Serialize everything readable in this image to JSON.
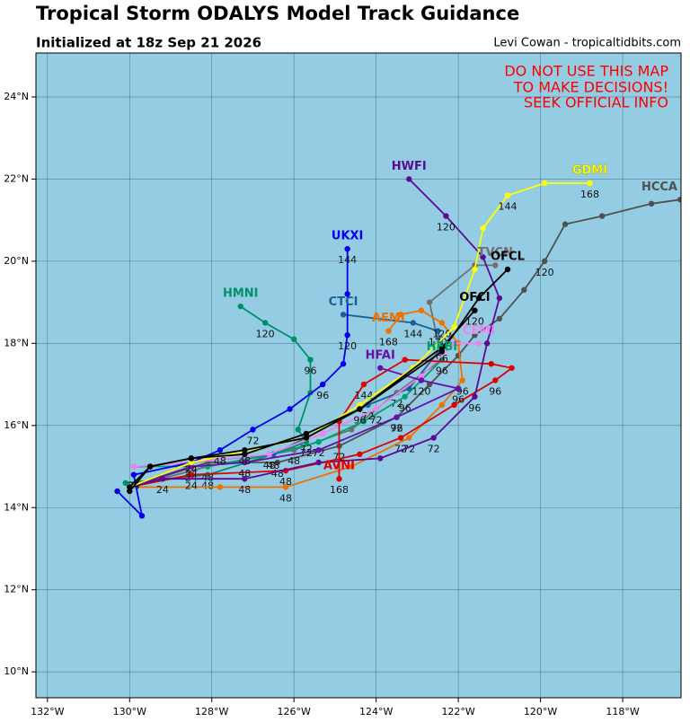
{
  "chart_data": {
    "type": "track",
    "title": "Tropical Storm ODALYS Model Track Guidance",
    "subtitle": "Initialized at 18z Sep 21 2026",
    "credit": "Levi Cowan - tropicaltidbits.com",
    "warning": [
      "DO NOT USE THIS MAP",
      "TO MAKE DECISIONS!",
      "SEEK OFFICIAL INFO"
    ],
    "background": "#94cde3",
    "grid": true,
    "xlim": [
      -132.28,
      -116.58
    ],
    "ylim": [
      9.37,
      25.07
    ],
    "xticks": [
      {
        "value": -132,
        "label": "132°W"
      },
      {
        "value": -130,
        "label": "130°W"
      },
      {
        "value": -128,
        "label": "128°W"
      },
      {
        "value": -126,
        "label": "126°W"
      },
      {
        "value": -124,
        "label": "124°W"
      },
      {
        "value": -122,
        "label": "122°W"
      },
      {
        "value": -120,
        "label": "120°W"
      },
      {
        "value": -118,
        "label": "118°W"
      }
    ],
    "yticks": [
      {
        "value": 10,
        "label": "10°N"
      },
      {
        "value": 12,
        "label": "12°N"
      },
      {
        "value": 14,
        "label": "14°N"
      },
      {
        "value": 16,
        "label": "16°N"
      },
      {
        "value": 18,
        "label": "18°N"
      },
      {
        "value": 20,
        "label": "20°N"
      },
      {
        "value": 22,
        "label": "22°N"
      },
      {
        "value": 24,
        "label": "24°N"
      }
    ],
    "tracks": [
      {
        "name": "HCCA",
        "color": "#505050",
        "lon": [
          -130.0,
          -128.1,
          -126.4,
          -124.9,
          -123.5,
          -122.7,
          -122.0,
          -121.6,
          -121.0,
          -120.4,
          -119.9,
          -119.4,
          -118.5,
          -117.3,
          -116.6
        ],
        "lat": [
          14.5,
          15.1,
          15.1,
          15.5,
          16.2,
          17.0,
          17.7,
          18.2,
          18.6,
          19.3,
          20.0,
          20.9,
          21.1,
          21.4,
          21.5
        ],
        "hours": [
          null,
          null,
          48,
          72,
          96,
          null,
          null,
          null,
          null,
          null,
          120,
          null,
          null,
          null,
          null
        ]
      },
      {
        "name": "TVCN",
        "color": "#707070",
        "lon": [
          -130.0,
          -128.1,
          -126.0,
          -124.6,
          -123.5,
          -122.4,
          -122.7,
          -121.6,
          -121.1
        ],
        "lat": [
          14.5,
          15.0,
          15.4,
          15.9,
          16.8,
          17.6,
          19.0,
          19.9,
          19.9
        ],
        "hours": [
          null,
          null,
          48,
          null,
          72,
          96,
          null,
          null,
          null
        ]
      },
      {
        "name": "HMNI",
        "color": "#009068",
        "lon": [
          -130.1,
          -128.1,
          -126.5,
          -125.7,
          -125.9,
          -125.6,
          -125.6,
          -126.0,
          -126.7,
          -127.3
        ],
        "lat": [
          14.6,
          14.8,
          15.3,
          15.6,
          15.9,
          16.8,
          17.6,
          18.1,
          18.5,
          18.9
        ],
        "hours": [
          null,
          48,
          null,
          72,
          null,
          null,
          96,
          null,
          120,
          null
        ]
      },
      {
        "name": "HFBI",
        "color": "#00a070",
        "lon": [
          -129.9,
          -128.1,
          -126.5,
          -125.4,
          -124.3,
          -123.3,
          -122.4
        ],
        "lat": [
          15.0,
          15.0,
          15.3,
          15.6,
          16.1,
          16.7,
          17.6
        ],
        "hours": [
          null,
          48,
          null,
          72,
          null,
          96,
          null
        ]
      },
      {
        "name": "CTCI",
        "color": "#1a6090",
        "lon": [
          -130.0,
          -128.5,
          -126.5,
          -125.7,
          -124.2,
          -123.2,
          -122.4,
          -122.5,
          -123.1,
          -124.8
        ],
        "lat": [
          14.5,
          15.1,
          15.3,
          15.7,
          16.5,
          16.9,
          17.9,
          18.3,
          18.5,
          18.7
        ],
        "hours": [
          null,
          24,
          48,
          null,
          72,
          null,
          96,
          120,
          144,
          null
        ]
      },
      {
        "name": "AEMI",
        "color": "#f07000",
        "lon": [
          -130.0,
          -127.8,
          -126.2,
          -124.6,
          -123.2,
          -122.4,
          -121.9,
          -122.0,
          -122.4,
          -122.9,
          -123.4,
          -123.7
        ],
        "lat": [
          14.5,
          14.5,
          14.5,
          15.0,
          15.7,
          16.5,
          17.1,
          18.0,
          18.5,
          18.8,
          18.7,
          18.3
        ],
        "hours": [
          null,
          null,
          48,
          null,
          72,
          null,
          96,
          null,
          120,
          null,
          null,
          168
        ]
      },
      {
        "name": "CEMI",
        "color": "#ee82ee",
        "lon": [
          -129.9,
          -128.5,
          -126.6,
          -125.3,
          -124.0,
          -122.9,
          -122.1,
          -121.5
        ],
        "lat": [
          15.0,
          15.1,
          15.3,
          15.8,
          16.4,
          17.2,
          18.0,
          18.0
        ],
        "hours": [
          null,
          null,
          48,
          null,
          72,
          null,
          null,
          null
        ]
      },
      {
        "name": "AVNI",
        "color": "#e00000",
        "lon": [
          -130.0,
          -128.5,
          -126.2,
          -124.4,
          -123.4,
          -122.1,
          -121.1,
          -120.7,
          -121.2,
          -123.3,
          -124.3,
          -124.9,
          -124.9
        ],
        "lat": [
          14.5,
          14.8,
          14.9,
          15.3,
          15.7,
          16.5,
          17.1,
          17.4,
          17.5,
          17.6,
          17.0,
          16.1,
          14.7
        ],
        "hours": [
          null,
          24,
          48,
          null,
          72,
          null,
          96,
          null,
          null,
          null,
          144,
          null,
          168
        ]
      },
      {
        "name": "HFAI",
        "color": "#6a0dad",
        "lon": [
          -130.0,
          -128.5,
          -127.2,
          -125.4,
          -123.5,
          -122.0,
          -122.9,
          -123.9
        ],
        "lat": [
          14.5,
          15.0,
          15.1,
          15.4,
          16.2,
          16.9,
          17.1,
          17.4
        ],
        "hours": [
          null,
          24,
          48,
          null,
          72,
          96,
          120,
          null
        ]
      },
      {
        "name": "HWFI",
        "color": "#5b0a91",
        "lon": [
          -130.0,
          -129.2,
          -127.2,
          -125.4,
          -123.9,
          -122.6,
          -121.6,
          -121.3,
          -121.0,
          -121.4,
          -122.3,
          -123.2
        ],
        "lat": [
          14.5,
          14.7,
          14.7,
          15.1,
          15.2,
          15.7,
          16.7,
          18.0,
          19.1,
          20.1,
          21.1,
          22.0
        ],
        "hours": [
          null,
          24,
          48,
          null,
          null,
          72,
          96,
          null,
          null,
          null,
          120,
          null
        ]
      },
      {
        "name": "UKXI",
        "color": "#0000ee",
        "lon": [
          -130.3,
          -129.7,
          -129.9,
          -128.5,
          -127.8,
          -127.0,
          -126.1,
          -125.3,
          -124.8,
          -124.7,
          -124.7,
          -124.7
        ],
        "lat": [
          14.4,
          13.8,
          14.8,
          15.1,
          15.4,
          15.9,
          16.4,
          17.0,
          17.5,
          18.2,
          19.2,
          20.3
        ],
        "hours": [
          null,
          null,
          24,
          null,
          48,
          72,
          null,
          96,
          null,
          120,
          null,
          144
        ]
      },
      {
        "name": "GDMI",
        "color": "#ffff00",
        "lon": [
          -130.0,
          -128.5,
          -125.7,
          -124.4,
          -123.1,
          -122.1,
          -121.6,
          -121.4,
          -120.8,
          -119.9,
          -118.8
        ],
        "lat": [
          14.5,
          15.1,
          15.7,
          16.5,
          17.4,
          18.4,
          19.8,
          20.8,
          21.6,
          21.9,
          21.9
        ],
        "hours": [
          null,
          null,
          null,
          null,
          null,
          null,
          null,
          null,
          144,
          null,
          168
        ]
      },
      {
        "name": "OFCL",
        "color": "#000000",
        "lon": [
          -130.0,
          -129.5,
          -128.5,
          -127.2,
          -125.7,
          -124.4,
          -122.4,
          -121.5,
          -120.8
        ],
        "lat": [
          14.4,
          15.0,
          15.2,
          15.3,
          15.8,
          16.4,
          17.8,
          19.1,
          19.8
        ],
        "hours": [
          null,
          null,
          null,
          null,
          null,
          null,
          null,
          null,
          null
        ]
      },
      {
        "name": "OFCI",
        "color": "#000000",
        "lon": [
          -130.0,
          -129.5,
          -128.5,
          -127.2,
          -125.7,
          -124.4,
          -122.4,
          -121.6
        ],
        "lat": [
          14.5,
          15.0,
          15.2,
          15.4,
          15.7,
          16.4,
          17.9,
          18.8
        ],
        "hours": [
          null,
          null,
          24,
          48,
          72,
          96,
          null,
          120
        ]
      }
    ]
  }
}
